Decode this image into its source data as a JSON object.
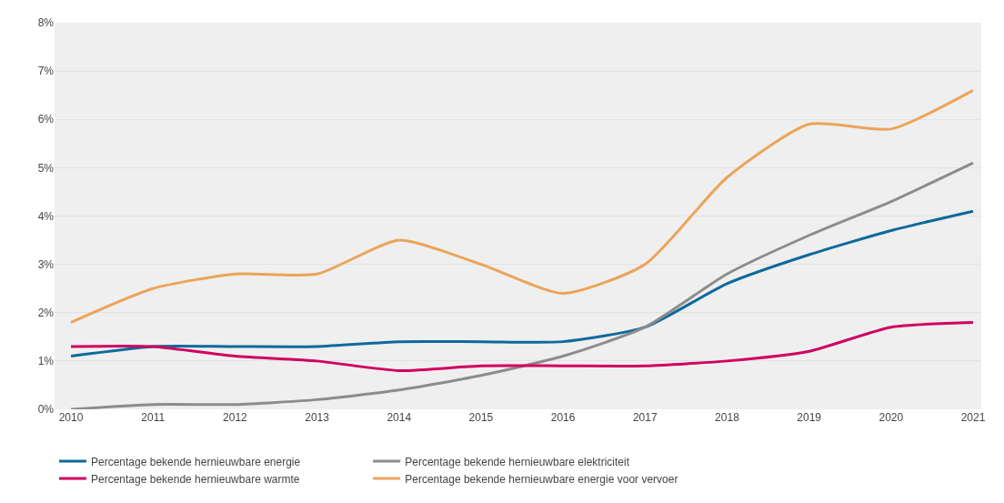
{
  "chart_data": {
    "type": "line",
    "categories": [
      "2010",
      "2011",
      "2012",
      "2013",
      "2014",
      "2015",
      "2016",
      "2017",
      "2018",
      "2019",
      "2020",
      "2021"
    ],
    "series": [
      {
        "name": "Percentage bekende hernieuwbare energie",
        "color": "#0c6a9c",
        "values": [
          1.1,
          1.3,
          1.3,
          1.3,
          1.4,
          1.4,
          1.4,
          1.7,
          2.6,
          3.2,
          3.7,
          4.1
        ]
      },
      {
        "name": "Percentage bekende hernieuwbare elektriciteit",
        "color": "#8c8c8c",
        "values": [
          0.0,
          0.1,
          0.1,
          0.2,
          0.4,
          0.7,
          1.1,
          1.7,
          2.8,
          3.6,
          4.3,
          5.1
        ]
      },
      {
        "name": "Percentage bekende hernieuwbare warmte",
        "color": "#d0005f",
        "values": [
          1.3,
          1.3,
          1.1,
          1.0,
          0.8,
          0.9,
          0.9,
          0.9,
          1.0,
          1.2,
          1.7,
          1.8
        ]
      },
      {
        "name": "Percentage bekende hernieuwbare energie voor vervoer",
        "color": "#eca45a",
        "values": [
          1.8,
          2.5,
          2.8,
          2.8,
          3.5,
          3.0,
          2.4,
          3.0,
          4.8,
          5.9,
          5.8,
          6.6
        ]
      }
    ],
    "ylim": [
      0,
      8
    ],
    "yticks": [
      {
        "value": 0,
        "label": "0%"
      },
      {
        "value": 1,
        "label": "1%"
      },
      {
        "value": 2,
        "label": "2%"
      },
      {
        "value": 3,
        "label": "3%"
      },
      {
        "value": 4,
        "label": "4%"
      },
      {
        "value": 5,
        "label": "5%"
      },
      {
        "value": 6,
        "label": "6%"
      },
      {
        "value": 7,
        "label": "7%"
      },
      {
        "value": 8,
        "label": "8%"
      }
    ],
    "grid": "y",
    "legend": "bottom",
    "marker": "none",
    "line_style": "solid"
  }
}
